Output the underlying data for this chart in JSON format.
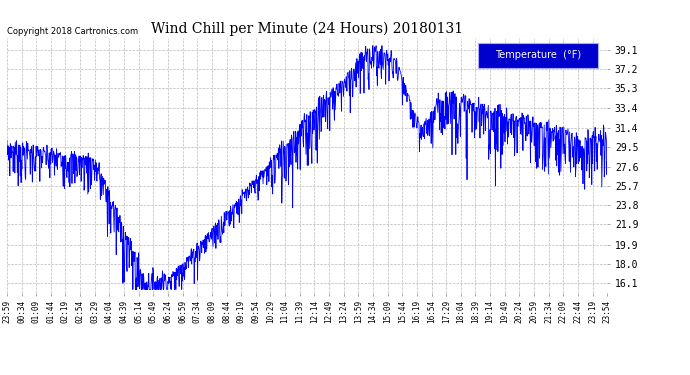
{
  "title": "Wind Chill per Minute (24 Hours) 20180131",
  "copyright_text": "Copyright 2018 Cartronics.com",
  "legend_label": "Temperature  (°F)",
  "background_color": "#ffffff",
  "plot_bg_color": "#ffffff",
  "line_color": "#0000ff",
  "legend_bg_color": "#0000cc",
  "legend_text_color": "#ffffff",
  "yticks": [
    16.1,
    18.0,
    19.9,
    21.9,
    23.8,
    25.7,
    27.6,
    29.5,
    31.4,
    33.4,
    35.3,
    37.2,
    39.1
  ],
  "ylim": [
    15.2,
    40.3
  ],
  "xlabels": [
    "23:59",
    "00:34",
    "01:09",
    "01:44",
    "02:19",
    "02:54",
    "03:29",
    "04:04",
    "04:39",
    "05:14",
    "05:49",
    "06:24",
    "06:59",
    "07:34",
    "08:09",
    "08:44",
    "09:19",
    "09:54",
    "10:29",
    "11:04",
    "11:39",
    "12:14",
    "12:49",
    "13:24",
    "13:59",
    "14:34",
    "15:09",
    "15:44",
    "16:19",
    "16:54",
    "17:29",
    "18:04",
    "18:39",
    "19:14",
    "19:49",
    "20:24",
    "20:59",
    "21:34",
    "22:09",
    "22:44",
    "23:19",
    "23:54"
  ],
  "grid_color": "#bbbbbb",
  "grid_style": "--"
}
